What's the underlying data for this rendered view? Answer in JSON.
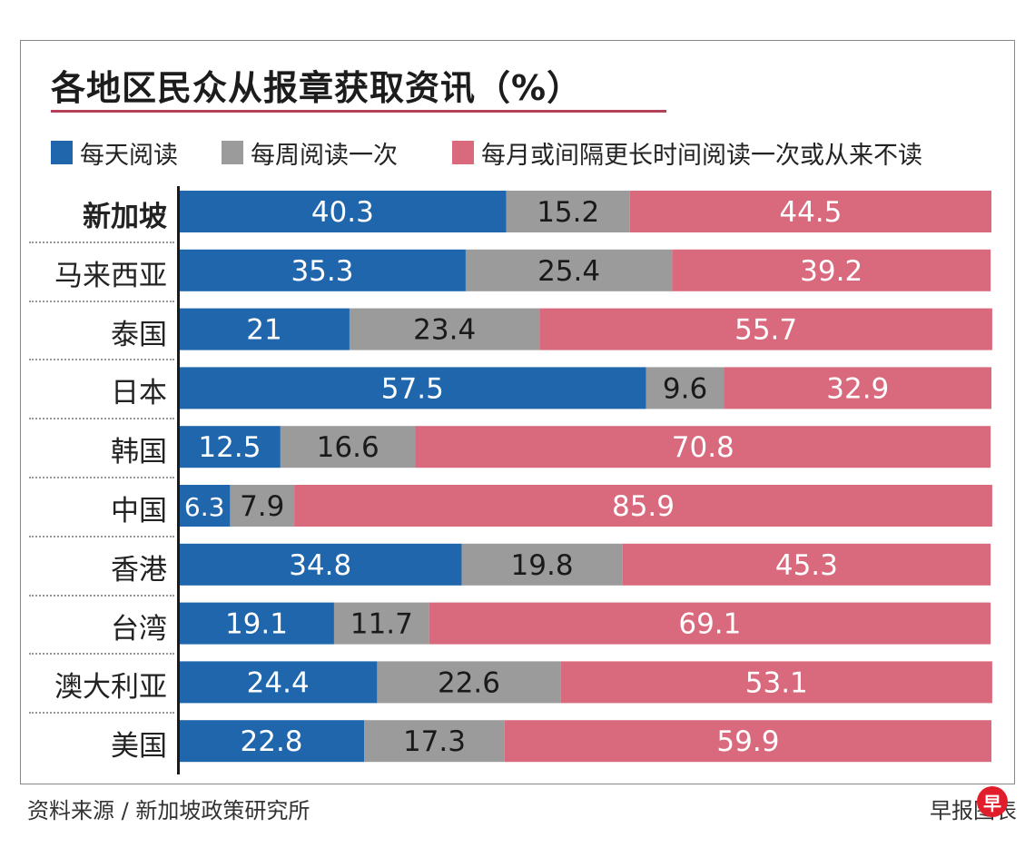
{
  "header": {
    "title": "各地区民众从报章获取资讯（%）"
  },
  "legend": [
    {
      "label": "每天阅读",
      "color": "#1f66ad"
    },
    {
      "label": "每周阅读一次",
      "color": "#9b9b9b"
    },
    {
      "label": "每月或间隔更长时间阅读一次或从来不读",
      "color": "#d96a7d"
    }
  ],
  "chart_data": {
    "type": "bar",
    "orientation": "horizontal",
    "stacked": true,
    "title": "各地区民众从报章获取资讯（%）",
    "categories": [
      "新加坡",
      "马来西亚",
      "泰国",
      "日本",
      "韩国",
      "中国",
      "香港",
      "台湾",
      "澳大利亚",
      "美国"
    ],
    "series": [
      {
        "name": "每天阅读",
        "color": "#1f66ad",
        "values": [
          40.3,
          35.3,
          21,
          57.5,
          12.5,
          6.3,
          34.8,
          19.1,
          24.4,
          22.8
        ]
      },
      {
        "name": "每周阅读一次",
        "color": "#9b9b9b",
        "values": [
          15.2,
          25.4,
          23.4,
          9.6,
          16.6,
          7.9,
          19.8,
          11.7,
          22.6,
          17.3
        ]
      },
      {
        "name": "每月或间隔更长时间阅读一次或从来不读",
        "color": "#d96a7d",
        "values": [
          44.5,
          39.2,
          55.7,
          32.9,
          70.8,
          85.9,
          45.3,
          69.1,
          53.1,
          59.9
        ]
      }
    ],
    "xlim": [
      0,
      100
    ],
    "xlabel": "",
    "ylabel": ""
  },
  "footer": {
    "source": "资料来源 / 新加坡政策研究所",
    "credit": "早报图表",
    "logo_char": "早"
  }
}
